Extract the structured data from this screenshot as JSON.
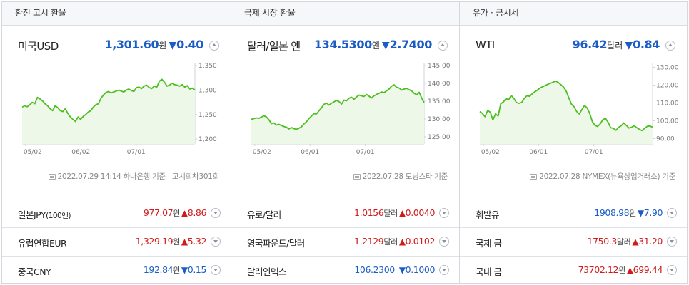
{
  "panels": [
    {
      "title": "환전 고시 환율",
      "main": {
        "name": "미국USD",
        "value": "1,301.60",
        "unit": "원",
        "arrow": "▼",
        "change": "0.40",
        "direction": "down"
      },
      "source": {
        "date": "2022.07.29 14:14",
        "provider": "하나은행 기준",
        "note": "고시회차301회"
      },
      "rows": [
        {
          "name": "일본JPY",
          "name_sub": "(100엔)",
          "value": "977.07",
          "unit": "원",
          "arrow": "▲",
          "change": "8.86",
          "direction": "up"
        },
        {
          "name": "유럽연합EUR",
          "name_sub": "",
          "value": "1,329.19",
          "unit": "원",
          "arrow": "▲",
          "change": "5.32",
          "direction": "up"
        },
        {
          "name": "중국CNY",
          "name_sub": "",
          "value": "192.84",
          "unit": "원",
          "arrow": "▼",
          "change": "0.15",
          "direction": "down"
        }
      ]
    },
    {
      "title": "국제 시장 환율",
      "main": {
        "name": "달러/일본 엔",
        "value": "134.5300",
        "unit": "엔",
        "arrow": "▼",
        "change": "2.7400",
        "direction": "down"
      },
      "source": {
        "date": "2022.07.28",
        "provider": "모닝스타 기준",
        "note": ""
      },
      "rows": [
        {
          "name": "유로/달러",
          "name_sub": "",
          "value": "1.0156",
          "unit": "달러",
          "arrow": "▲",
          "change": "0.0040",
          "direction": "up"
        },
        {
          "name": "영국파운드/달러",
          "name_sub": "",
          "value": "1.2129",
          "unit": "달러",
          "arrow": "▲",
          "change": "0.0102",
          "direction": "up"
        },
        {
          "name": "달러인덱스",
          "name_sub": "",
          "value": "106.2300",
          "unit": "",
          "arrow": "▼",
          "change": "0.1000",
          "direction": "down"
        }
      ]
    },
    {
      "title": "유가 · 금시세",
      "main": {
        "name": "WTI",
        "value": "96.42",
        "unit": "달러",
        "arrow": "▼",
        "change": "0.84",
        "direction": "down"
      },
      "source": {
        "date": "2022.07.28",
        "provider": "NYMEX(뉴욕상업거래소) 기준",
        "note": ""
      },
      "rows": [
        {
          "name": "휘발유",
          "name_sub": "",
          "value": "1908.98",
          "unit": "원",
          "arrow": "▼",
          "change": "7.90",
          "direction": "down"
        },
        {
          "name": "국제 금",
          "name_sub": "",
          "value": "1750.3",
          "unit": "달러",
          "arrow": "▲",
          "change": "31.20",
          "direction": "up"
        },
        {
          "name": "국내 금",
          "name_sub": "",
          "value": "73702.12",
          "unit": "원",
          "arrow": "▲",
          "change": "699.44",
          "direction": "up"
        }
      ]
    }
  ],
  "chart_data": [
    {
      "type": "area",
      "xticks": [
        "05/02",
        "06/02",
        "07/01"
      ],
      "ylim": [
        1190,
        1350
      ],
      "yticks": [
        "1,350",
        "1,300",
        "1,250",
        "1,200"
      ],
      "color": "#4cbe1f",
      "values": [
        1265,
        1268,
        1266,
        1270,
        1275,
        1272,
        1285,
        1282,
        1278,
        1272,
        1268,
        1262,
        1258,
        1268,
        1264,
        1258,
        1256,
        1262,
        1252,
        1245,
        1240,
        1236,
        1245,
        1240,
        1246,
        1250,
        1255,
        1258,
        1265,
        1270,
        1272,
        1283,
        1290,
        1295,
        1297,
        1294,
        1296,
        1298,
        1300,
        1298,
        1296,
        1300,
        1302,
        1299,
        1297,
        1305,
        1306,
        1303,
        1308,
        1310,
        1305,
        1303,
        1308,
        1306,
        1318,
        1322,
        1316,
        1308,
        1310,
        1314,
        1311,
        1310,
        1308,
        1311,
        1306,
        1309,
        1302,
        1304,
        1300
      ]
    },
    {
      "type": "area",
      "xticks": [
        "05/02",
        "06/01",
        "07/01"
      ],
      "ylim": [
        123,
        145
      ],
      "yticks": [
        "145.00",
        "140.00",
        "135.00",
        "130.00",
        "125.00"
      ],
      "color": "#4cbe1f",
      "values": [
        129.9,
        130.1,
        130.3,
        130.2,
        130.5,
        130.9,
        130.6,
        129.8,
        128.7,
        128.9,
        128.3,
        128.5,
        128.2,
        127.9,
        127.7,
        127.2,
        127.6,
        127.3,
        127.1,
        127.4,
        127.8,
        128.6,
        129.2,
        130.1,
        130.8,
        131.5,
        131.4,
        132.3,
        133.1,
        134.1,
        134.5,
        133.9,
        134.4,
        134.8,
        135.2,
        134.9,
        134.2,
        135.3,
        135.1,
        135.8,
        136.1,
        135.5,
        136.2,
        136.7,
        136.5,
        136.3,
        136.9,
        136.4,
        135.9,
        136.5,
        136.9,
        137.2,
        137.6,
        137.4,
        137.9,
        138.4,
        139.2,
        139.6,
        138.9,
        138.7,
        138.1,
        138.4,
        138.6,
        138.2,
        137.9,
        137.2,
        136.8,
        137.5,
        135.9,
        134.5
      ]
    },
    {
      "type": "area",
      "xticks": [
        "05/02",
        "06/01",
        "07/01"
      ],
      "ylim": [
        87,
        131
      ],
      "yticks": [
        "130.00",
        "120.00",
        "110.00",
        "100.00",
        "90.00"
      ],
      "color": "#4cbe1f",
      "values": [
        105.2,
        104.1,
        102.3,
        105.8,
        104.8,
        100.4,
        103.9,
        102.7,
        109.5,
        110.6,
        112.4,
        111.8,
        114.2,
        112.5,
        110.3,
        109.8,
        110.3,
        112.5,
        114.1,
        113.7,
        115.1,
        116.3,
        117.2,
        118.4,
        119.1,
        119.8,
        120.5,
        121.1,
        121.7,
        122.3,
        121.5,
        120.2,
        118.9,
        116.7,
        112.8,
        109.4,
        107.9,
        105.2,
        103.8,
        106.3,
        108.6,
        107.2,
        104.1,
        99.5,
        97.5,
        96.8,
        98.3,
        100.6,
        101.4,
        99.2,
        96.1,
        95.8,
        94.7,
        96.3,
        97.2,
        98.8,
        97.4,
        95.9,
        96.4,
        97.2,
        96.1,
        95.2,
        94.5,
        95.8,
        96.9,
        97.1,
        96.4
      ]
    }
  ]
}
